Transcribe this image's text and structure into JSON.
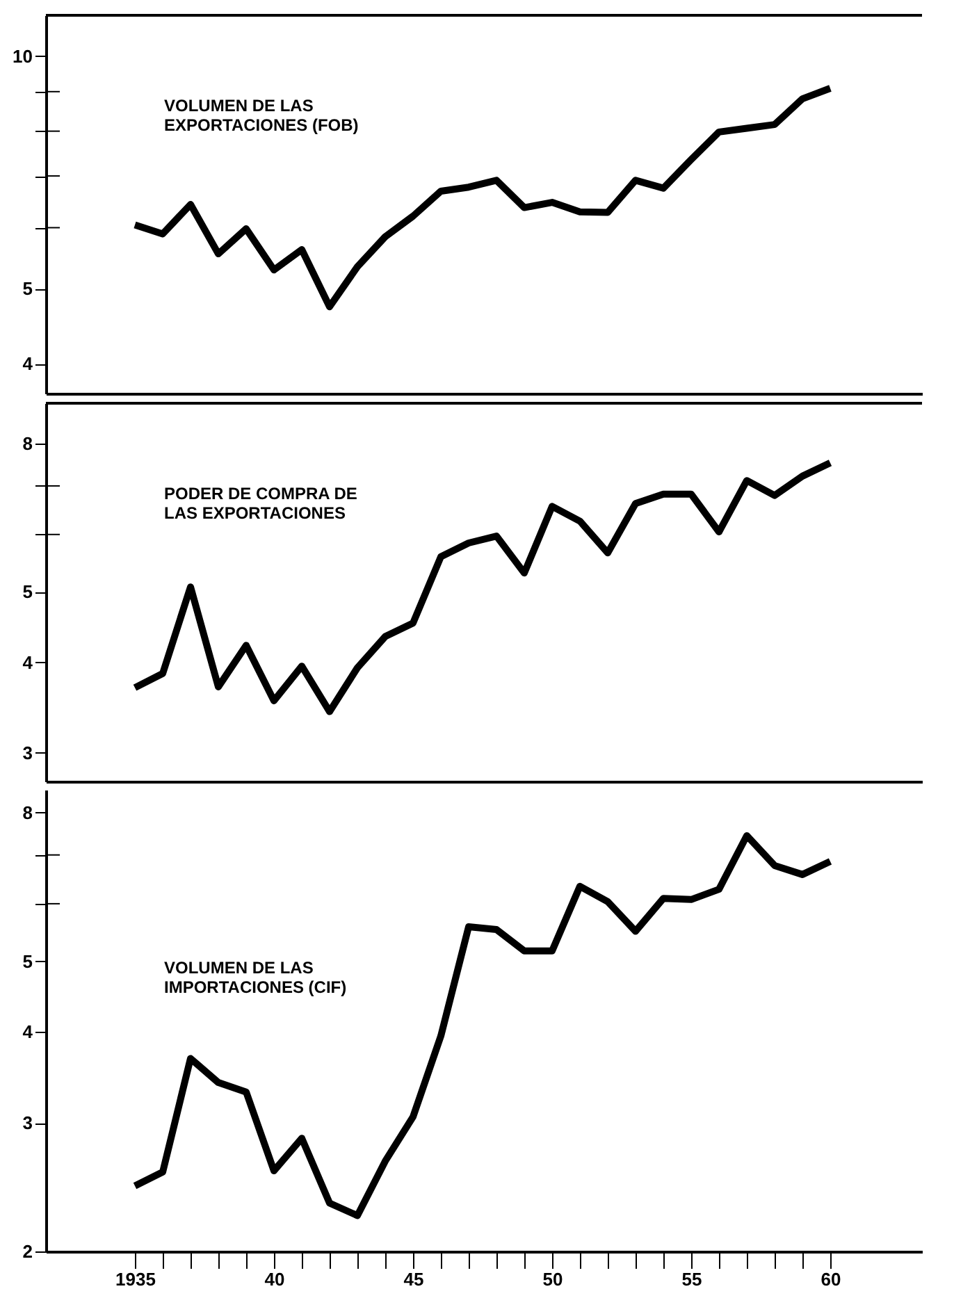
{
  "chart_data": [
    {
      "type": "line",
      "x": [
        1935,
        1936,
        1937,
        1938,
        1939,
        1940,
        1941,
        1942,
        1943,
        1944,
        1945,
        1946,
        1947,
        1948,
        1949,
        1950,
        1951,
        1952,
        1953,
        1954,
        1955,
        1956,
        1957,
        1958,
        1959,
        1960
      ],
      "series": [
        {
          "name": "VOLUMEN DE LAS\nEXPORTACIONES (FOB)",
          "color": "#000000",
          "values": [
            6.05,
            5.89,
            6.43,
            5.55,
            5.98,
            5.29,
            5.62,
            4.74,
            5.34,
            5.84,
            6.21,
            6.69,
            6.77,
            6.91,
            6.37,
            6.47,
            6.29,
            6.28,
            6.91,
            6.75,
            7.35,
            7.98,
            8.07,
            8.16,
            8.81,
            9.09
          ]
        }
      ],
      "log": true,
      "xlim": [
        1931.8,
        1963.3
      ],
      "ylim": [
        3.66,
        11.3
      ],
      "yticks": [
        4,
        5,
        {
          "value": 6,
          "label": null
        },
        {
          "value": 7,
          "label": null
        },
        {
          "value": 8,
          "label": null
        },
        {
          "value": 9,
          "label": null
        },
        10
      ],
      "tick_labels": "y",
      "grid": false,
      "marker": "none",
      "line_style": "solid"
    },
    {
      "type": "line",
      "x": [
        1935,
        1936,
        1937,
        1938,
        1939,
        1940,
        1941,
        1942,
        1943,
        1944,
        1945,
        1946,
        1947,
        1948,
        1949,
        1950,
        1951,
        1952,
        1953,
        1954,
        1955,
        1956,
        1957,
        1958,
        1959,
        1960
      ],
      "series": [
        {
          "name": "PODER DE COMPRA DE\nLAS EXPORTACIONES",
          "color": "#000000",
          "values": [
            3.69,
            3.86,
            5.08,
            3.7,
            4.22,
            3.54,
            3.95,
            3.42,
            3.93,
            4.34,
            4.53,
            5.59,
            5.84,
            5.97,
            5.31,
            6.56,
            6.26,
            5.66,
            6.62,
            6.82,
            6.82,
            6.05,
            7.12,
            6.79,
            7.22,
            7.53
          ]
        }
      ],
      "log": true,
      "xlim": [
        1931.8,
        1963.3
      ],
      "ylim": [
        2.74,
        9.1
      ],
      "yticks": [
        3,
        4,
        5,
        {
          "value": 6,
          "label": null
        },
        {
          "value": 7,
          "label": null
        },
        8
      ],
      "tick_labels": "y",
      "grid": false,
      "marker": "none",
      "line_style": "solid"
    },
    {
      "type": "line",
      "x": [
        1935,
        1936,
        1937,
        1938,
        1939,
        1940,
        1941,
        1942,
        1943,
        1944,
        1945,
        1946,
        1947,
        1948,
        1949,
        1950,
        1951,
        1952,
        1953,
        1954,
        1955,
        1956,
        1957,
        1958,
        1959,
        1960
      ],
      "series": [
        {
          "name": "VOLUMEN DE LAS\nIMPORTACIONES (CIF)",
          "color": "#000000",
          "values": [
            2.46,
            2.57,
            3.68,
            3.41,
            3.31,
            2.58,
            2.86,
            2.33,
            2.24,
            2.66,
            3.06,
            3.95,
            5.58,
            5.53,
            5.17,
            5.17,
            6.34,
            6.04,
            5.5,
            6.1,
            6.08,
            6.28,
            7.44,
            6.77,
            6.58,
            6.86
          ]
        }
      ],
      "log": true,
      "xlim": [
        1931.8,
        1963.3
      ],
      "ylim": [
        2,
        8.6
      ],
      "yticks": [
        2,
        3,
        4,
        5,
        {
          "value": 6,
          "label": null
        },
        {
          "value": 7,
          "label": null
        },
        8
      ],
      "xticks": [
        1935,
        {
          "value": 1936,
          "label": null
        },
        {
          "value": 1937,
          "label": null
        },
        {
          "value": 1938,
          "label": null
        },
        {
          "value": 1939,
          "label": null
        },
        {
          "value": 1940,
          "label": "40"
        },
        {
          "value": 1941,
          "label": null
        },
        {
          "value": 1942,
          "label": null
        },
        {
          "value": 1943,
          "label": null
        },
        {
          "value": 1944,
          "label": null
        },
        {
          "value": 1945,
          "label": "45"
        },
        {
          "value": 1946,
          "label": null
        },
        {
          "value": 1947,
          "label": null
        },
        {
          "value": 1948,
          "label": null
        },
        {
          "value": 1949,
          "label": null
        },
        {
          "value": 1950,
          "label": "50"
        },
        {
          "value": 1951,
          "label": null
        },
        {
          "value": 1952,
          "label": null
        },
        {
          "value": 1953,
          "label": null
        },
        {
          "value": 1954,
          "label": null
        },
        {
          "value": 1955,
          "label": "55"
        },
        {
          "value": 1956,
          "label": null
        },
        {
          "value": 1957,
          "label": null
        },
        {
          "value": 1958,
          "label": null
        },
        {
          "value": 1959,
          "label": null
        },
        {
          "value": 1960,
          "label": "60"
        }
      ],
      "grid": false,
      "marker": "none",
      "line_style": "solid"
    }
  ]
}
